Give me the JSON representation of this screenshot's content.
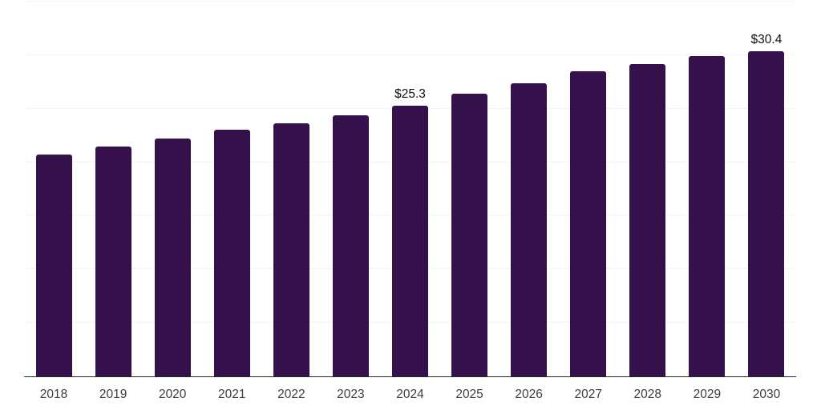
{
  "chart_data": {
    "type": "bar",
    "title": "",
    "xlabel": "",
    "ylabel": "",
    "categories": [
      "2018",
      "2019",
      "2020",
      "2021",
      "2022",
      "2023",
      "2024",
      "2025",
      "2026",
      "2027",
      "2028",
      "2029",
      "2030"
    ],
    "values": [
      20.7,
      21.5,
      22.2,
      23.0,
      23.6,
      24.4,
      25.3,
      26.4,
      27.4,
      28.5,
      29.2,
      29.9,
      30.4
    ],
    "value_labels": [
      "",
      "",
      "",
      "",
      "",
      "",
      "$25.3",
      "",
      "",
      "",
      "",
      "",
      "$30.4"
    ],
    "ylim": [
      0,
      35
    ],
    "grid_step": 5,
    "grid": true,
    "legend": false,
    "bar_color": "#35114B",
    "grid_color": "#f4f3f4",
    "axis_line_color": "#262626",
    "tick_label_color": "#3d3d3d",
    "data_label_color": "#0f0f0f",
    "background_color": "#ffffff"
  }
}
